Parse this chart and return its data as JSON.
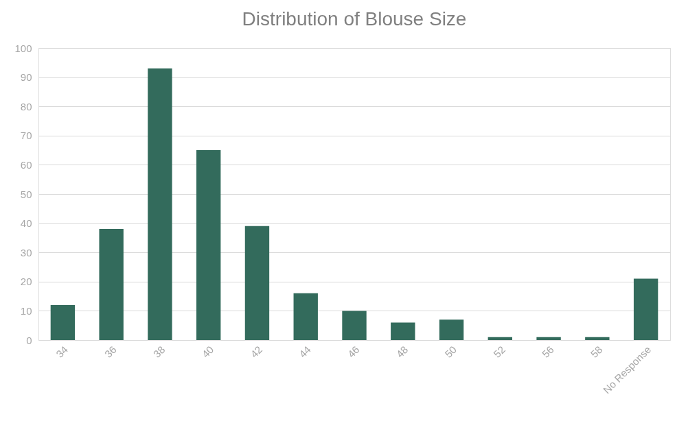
{
  "chart_data": {
    "type": "bar",
    "title": "Distribution of Blouse Size",
    "categories": [
      "34",
      "36",
      "38",
      "40",
      "42",
      "44",
      "46",
      "48",
      "50",
      "52",
      "56",
      "58",
      "No Response"
    ],
    "values": [
      12,
      38,
      93,
      65,
      39,
      16,
      10,
      6,
      7,
      1,
      1,
      1,
      21
    ],
    "color": "#336b5c",
    "ylim": [
      0,
      100
    ],
    "yticks": [
      0,
      10,
      20,
      30,
      40,
      50,
      60,
      70,
      80,
      90,
      100
    ],
    "grid": "y"
  }
}
